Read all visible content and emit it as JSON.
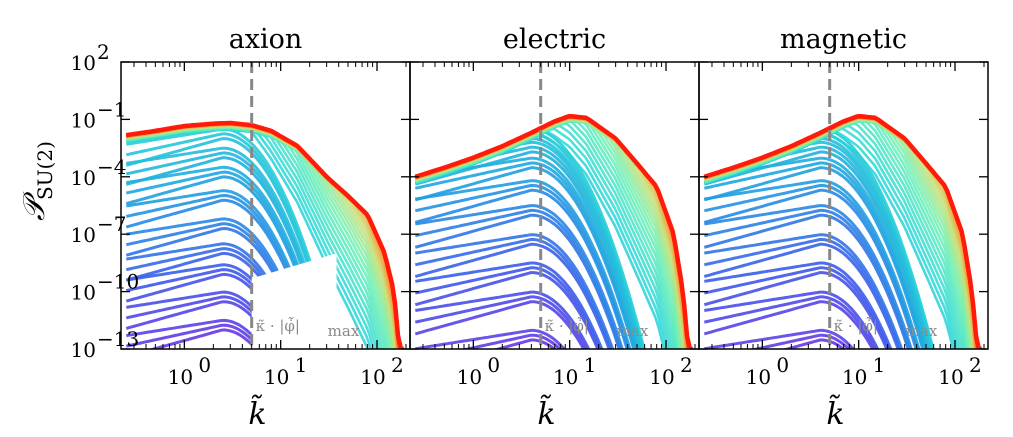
{
  "chart_data": {
    "type": "line",
    "description_ylabel": "𝒫",
    "ylabel_subscript": "SU(2)",
    "xlabel": "k̃",
    "x_scale": "log",
    "y_scale": "log",
    "xlim": [
      0.22,
      220
    ],
    "ylim": [
      1e-13,
      100
    ],
    "x_ticks": [
      {
        "value": 1,
        "label": "10",
        "exp": "0"
      },
      {
        "value": 10,
        "label": "10",
        "exp": "1"
      },
      {
        "value": 100,
        "label": "10",
        "exp": "2"
      }
    ],
    "y_ticks": [
      {
        "value": 1e-13,
        "label": "10",
        "exp": "−13"
      },
      {
        "value": 1e-10,
        "label": "10",
        "exp": "−10"
      },
      {
        "value": 1e-07,
        "label": "10",
        "exp": "−7"
      },
      {
        "value": 0.0001,
        "label": "10",
        "exp": "−4"
      },
      {
        "value": 0.1,
        "label": "10",
        "exp": "−1"
      },
      {
        "value": 100,
        "label": "10",
        "exp": "2"
      }
    ],
    "vline": {
      "x": 5,
      "style": "dashed",
      "color": "#888888",
      "label": "κ̃ · |φ̇̃|",
      "label_sub": "max"
    },
    "colormap": "rainbow (blue-violet early → red late)",
    "panels": [
      {
        "title": "axion",
        "final_curve": {
          "k": [
            0.25,
            0.5,
            1,
            2,
            3,
            5,
            8,
            15,
            30,
            50,
            80,
            120,
            150,
            170
          ],
          "P": [
            0.015,
            0.025,
            0.045,
            0.06,
            0.065,
            0.05,
            0.025,
            0.004,
            0.0001,
            1e-05,
            1e-06,
            1e-08,
            1e-10,
            1e-13
          ]
        },
        "early_curves_peak_k": 2.5,
        "early_amplitudes": [
          1e-12,
          3e-11,
          8e-10,
          1e-08,
          2e-07,
          6e-06,
          0.0001,
          0.001,
          0.01
        ]
      },
      {
        "title": "electric",
        "final_curve": {
          "k": [
            0.25,
            0.5,
            1,
            2,
            4,
            7,
            10,
            15,
            30,
            50,
            80,
            120,
            150,
            170
          ],
          "P": [
            0.0001,
            0.0003,
            0.001,
            0.004,
            0.02,
            0.08,
            0.15,
            0.12,
            0.01,
            0.0005,
            3e-05,
            1e-07,
            1e-10,
            1e-13
          ]
        },
        "early_curves_peak_k": 4,
        "early_amplitudes": [
          3e-13,
          3e-11,
          1e-09,
          3e-08,
          1e-06,
          2e-05,
          0.0003,
          0.002,
          0.01
        ]
      },
      {
        "title": "magnetic",
        "final_curve": {
          "k": [
            0.25,
            0.5,
            1,
            2,
            4,
            7,
            10,
            15,
            30,
            50,
            80,
            120,
            150,
            170
          ],
          "P": [
            0.0001,
            0.0003,
            0.001,
            0.004,
            0.02,
            0.08,
            0.15,
            0.12,
            0.01,
            0.0005,
            3e-05,
            1e-07,
            1e-10,
            1e-13
          ]
        },
        "early_curves_peak_k": 4,
        "early_amplitudes": [
          3e-13,
          3e-11,
          1e-09,
          3e-08,
          1e-06,
          2e-05,
          0.0003,
          0.002,
          0.01
        ]
      }
    ]
  }
}
